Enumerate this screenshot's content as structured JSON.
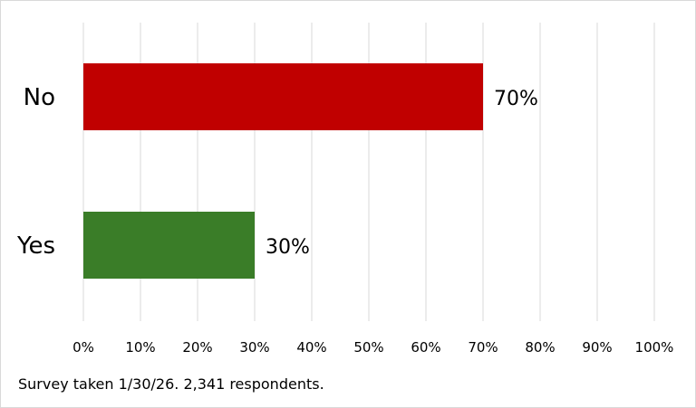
{
  "chart_data": {
    "type": "bar",
    "orientation": "horizontal",
    "categories": [
      "No",
      "Yes"
    ],
    "values": [
      70,
      30
    ],
    "colors": [
      "#c00000",
      "#3a7d28"
    ],
    "data_labels": [
      "70%",
      "30%"
    ],
    "x_ticks": [
      0,
      10,
      20,
      30,
      40,
      50,
      60,
      70,
      80,
      90,
      100
    ],
    "x_tick_labels": [
      "0%",
      "10%",
      "20%",
      "30%",
      "40%",
      "50%",
      "60%",
      "70%",
      "80%",
      "90%",
      "100%"
    ],
    "xlim": [
      0,
      100
    ],
    "grid": "vertical",
    "legend": "none",
    "title": "",
    "xlabel": "",
    "ylabel": ""
  },
  "footnote": "Survey taken 1/30/26. 2,341 respondents."
}
